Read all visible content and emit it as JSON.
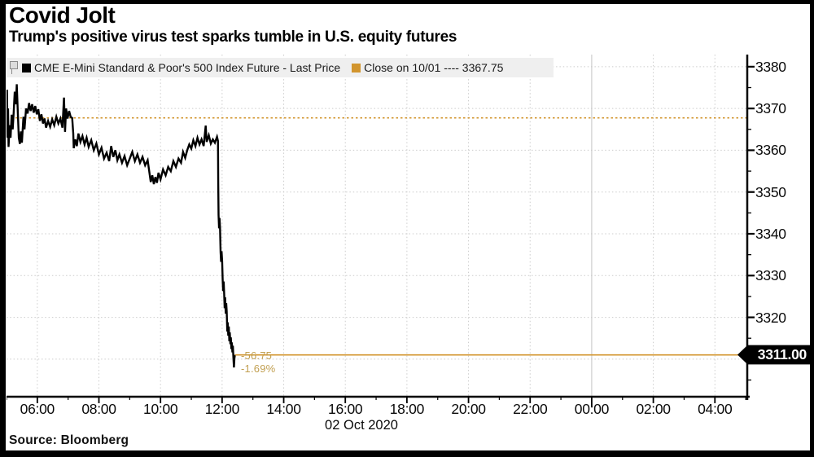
{
  "header": {
    "title": "Covid Jolt",
    "subtitle": "Trump's positive virus test sparks tumble in U.S. equity futures"
  },
  "legend": {
    "pin_icon": "annotation-pin",
    "series": [
      {
        "label": "CME E-Mini Standard & Poor's 500 Index Future - Last Price",
        "color": "#000000"
      },
      {
        "label": "Close on 10/01 ---- 3367.75",
        "color": "#D2952E"
      }
    ]
  },
  "source": "Source:  Bloomberg",
  "colors": {
    "accent_amber": "#D2952E",
    "annotation_text": "#C2A052",
    "gridline": "#cccccc",
    "day_separator": "#c2c2c2",
    "line": "#000000",
    "tag_bg": "#000000",
    "tag_text": "#ffffff"
  },
  "chart_data": {
    "type": "line",
    "title": "Covid Jolt",
    "subtitle": "Trump's positive virus test sparks tumble in U.S. equity futures",
    "x_axis": {
      "date_label": "02 Oct 2020",
      "range_hours": [
        5,
        29.05
      ],
      "ticks": [
        {
          "hour": 6,
          "label": "06:00"
        },
        {
          "hour": 8,
          "label": "08:00"
        },
        {
          "hour": 10,
          "label": "10:00"
        },
        {
          "hour": 12,
          "label": "12:00"
        },
        {
          "hour": 14,
          "label": "14:00"
        },
        {
          "hour": 16,
          "label": "16:00"
        },
        {
          "hour": 18,
          "label": "18:00"
        },
        {
          "hour": 20,
          "label": "20:00"
        },
        {
          "hour": 22,
          "label": "22:00"
        },
        {
          "hour": 24,
          "label": "00:00"
        },
        {
          "hour": 26,
          "label": "02:00"
        },
        {
          "hour": 28,
          "label": "04:00"
        }
      ]
    },
    "y_axis": {
      "range": [
        3301,
        3382.9
      ],
      "grid_values": [
        3380,
        3370,
        3360,
        3350,
        3340,
        3330,
        3320,
        3310
      ],
      "tick_labels": [
        {
          "value": 3380,
          "label": "3380"
        },
        {
          "value": 3370,
          "label": "3370"
        },
        {
          "value": 3360,
          "label": "3360"
        },
        {
          "value": 3350,
          "label": "3350"
        },
        {
          "value": 3340,
          "label": "3340"
        },
        {
          "value": 3330,
          "label": "3330"
        },
        {
          "value": 3320,
          "label": "3320"
        }
      ]
    },
    "reference_lines": {
      "close": {
        "value": 3367.75,
        "label": "Close on 10/01",
        "style": "dashed",
        "color": "#D2952E"
      },
      "last": {
        "value": 3311.0,
        "style": "solid",
        "color": "#D2952E"
      }
    },
    "last_price_label": "3311.00",
    "annotation": {
      "change": "-56.75",
      "pct": "-1.69%"
    },
    "series": [
      {
        "name": "CME E-Mini Standard & Poor's 500 Index Future - Last Price",
        "color": "#000000",
        "points_minutes_from_0500_and_price": [
          [
            0,
            3367
          ],
          [
            1,
            3374.5
          ],
          [
            2,
            3363
          ],
          [
            3,
            3370
          ],
          [
            4,
            3360.8
          ],
          [
            6,
            3366
          ],
          [
            8,
            3363
          ],
          [
            10,
            3368.5
          ],
          [
            12,
            3365
          ],
          [
            14,
            3369
          ],
          [
            16,
            3374
          ],
          [
            18,
            3371
          ],
          [
            20,
            3375.8
          ],
          [
            22,
            3369
          ],
          [
            24,
            3363
          ],
          [
            26,
            3361.5
          ],
          [
            28,
            3364.5
          ],
          [
            30,
            3361.8
          ],
          [
            33,
            3368
          ],
          [
            35,
            3365
          ],
          [
            38,
            3370
          ],
          [
            41,
            3368.8
          ],
          [
            44,
            3371.3
          ],
          [
            47,
            3369.4
          ],
          [
            50,
            3371
          ],
          [
            53,
            3369
          ],
          [
            56,
            3370.6
          ],
          [
            59,
            3368.6
          ],
          [
            62,
            3369.8
          ],
          [
            65,
            3367
          ],
          [
            68,
            3368.6
          ],
          [
            71,
            3366.4
          ],
          [
            74,
            3367.6
          ],
          [
            77,
            3365.4
          ],
          [
            81,
            3367
          ],
          [
            85,
            3365.6
          ],
          [
            89,
            3367.4
          ],
          [
            93,
            3366
          ],
          [
            97,
            3368
          ],
          [
            101,
            3366.4
          ],
          [
            105,
            3367.6
          ],
          [
            109,
            3365.4
          ],
          [
            112,
            3372.6
          ],
          [
            114,
            3364.4
          ],
          [
            116,
            3370
          ],
          [
            119,
            3367.6
          ],
          [
            122,
            3369.4
          ],
          [
            125,
            3368
          ],
          [
            128,
            3367.7
          ],
          [
            130,
            3364
          ],
          [
            131,
            3360.5
          ],
          [
            134,
            3362.6
          ],
          [
            137,
            3361
          ],
          [
            140,
            3364
          ],
          [
            144,
            3362
          ],
          [
            148,
            3363.4
          ],
          [
            152,
            3361.4
          ],
          [
            156,
            3363
          ],
          [
            160,
            3360.8
          ],
          [
            165,
            3362.4
          ],
          [
            170,
            3360
          ],
          [
            175,
            3361.6
          ],
          [
            180,
            3359
          ],
          [
            185,
            3360.6
          ],
          [
            190,
            3358
          ],
          [
            195,
            3359.4
          ],
          [
            200,
            3357.4
          ],
          [
            204,
            3361
          ],
          [
            208,
            3358.4
          ],
          [
            212,
            3360
          ],
          [
            216,
            3357.6
          ],
          [
            220,
            3359
          ],
          [
            225,
            3357
          ],
          [
            230,
            3358.6
          ],
          [
            235,
            3356.4
          ],
          [
            240,
            3358
          ],
          [
            245,
            3359.6
          ],
          [
            250,
            3357.4
          ],
          [
            255,
            3359
          ],
          [
            260,
            3357
          ],
          [
            265,
            3358.4
          ],
          [
            270,
            3356.4
          ],
          [
            275,
            3357.6
          ],
          [
            278,
            3355
          ],
          [
            281,
            3352.4
          ],
          [
            284,
            3354
          ],
          [
            287,
            3351.9
          ],
          [
            290,
            3353.6
          ],
          [
            293,
            3352.2
          ],
          [
            296,
            3354.6
          ],
          [
            300,
            3353
          ],
          [
            305,
            3355.4
          ],
          [
            310,
            3354
          ],
          [
            315,
            3356
          ],
          [
            320,
            3355
          ],
          [
            325,
            3357.4
          ],
          [
            330,
            3356
          ],
          [
            335,
            3358
          ],
          [
            340,
            3357
          ],
          [
            344,
            3359.6
          ],
          [
            348,
            3358.2
          ],
          [
            352,
            3360
          ],
          [
            356,
            3361.4
          ],
          [
            360,
            3360.4
          ],
          [
            364,
            3362.4
          ],
          [
            368,
            3361
          ],
          [
            372,
            3363
          ],
          [
            376,
            3361.4
          ],
          [
            380,
            3362.6
          ],
          [
            384,
            3361
          ],
          [
            388,
            3365.9
          ],
          [
            390,
            3362
          ],
          [
            394,
            3363.6
          ],
          [
            398,
            3361.6
          ],
          [
            402,
            3362.6
          ],
          [
            406,
            3361.8
          ],
          [
            410,
            3363.2
          ],
          [
            412,
            3362.2
          ],
          [
            412.5,
            3352
          ],
          [
            413,
            3344.5
          ],
          [
            414,
            3341.3
          ],
          [
            415,
            3343.8
          ],
          [
            416,
            3341.5
          ],
          [
            417,
            3335.6
          ],
          [
            418,
            3333.3
          ],
          [
            419,
            3335.8
          ],
          [
            420,
            3333.5
          ],
          [
            421,
            3329.3
          ],
          [
            422,
            3326.3
          ],
          [
            423,
            3328.6
          ],
          [
            424,
            3325.6
          ],
          [
            425,
            3322.2
          ],
          [
            426,
            3324.8
          ],
          [
            427,
            3320.9
          ],
          [
            428,
            3323.4
          ],
          [
            429,
            3321.5
          ],
          [
            430,
            3316.6
          ],
          [
            431,
            3318.8
          ],
          [
            432,
            3315.6
          ],
          [
            433,
            3317.8
          ],
          [
            434,
            3314.3
          ],
          [
            435,
            3316.4
          ],
          [
            436,
            3313.6
          ],
          [
            437,
            3315.2
          ],
          [
            438,
            3312.4
          ],
          [
            439,
            3314
          ],
          [
            440,
            3311.6
          ],
          [
            441,
            3313.2
          ],
          [
            442,
            3310.4
          ],
          [
            443,
            3308
          ],
          [
            444,
            3310.2
          ],
          [
            445,
            3311
          ]
        ]
      }
    ]
  }
}
